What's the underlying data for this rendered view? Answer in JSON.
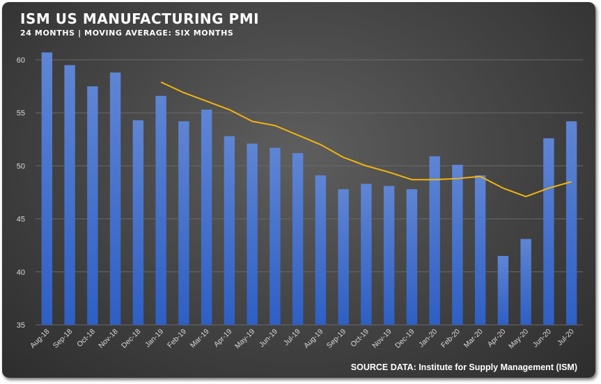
{
  "chart_data": {
    "type": "bar",
    "title": "ISM US MANUFACTURING PMI",
    "subtitle": "24 MONTHS | MOVING AVERAGE: SIX MONTHS",
    "source": "SOURCE DATA: Institute for Supply Management (ISM)",
    "categories": [
      "Aug-18",
      "Sep-18",
      "Oct-18",
      "Nov-18",
      "Dec-18",
      "Jan-19",
      "Feb-19",
      "Mar-19",
      "Apr-19",
      "May-19",
      "Jun-19",
      "Jul-19",
      "Aug-19",
      "Sep-19",
      "Oct-19",
      "Nov-19",
      "Dec-19",
      "Jan-20",
      "Feb-20",
      "Mar-20",
      "Apr-20",
      "May-20",
      "Jun-20",
      "Jul-20"
    ],
    "series": [
      {
        "type": "bar",
        "values": [
          60.7,
          59.5,
          57.5,
          58.8,
          54.3,
          56.6,
          54.2,
          55.3,
          52.8,
          52.1,
          51.7,
          51.2,
          49.1,
          47.8,
          48.3,
          48.1,
          47.8,
          50.9,
          50.1,
          49.1,
          41.5,
          43.1,
          52.6,
          54.2
        ]
      },
      {
        "type": "line",
        "values": [
          null,
          null,
          null,
          null,
          null,
          57.9,
          56.9,
          56.1,
          55.3,
          54.2,
          53.8,
          52.9,
          52.0,
          50.8,
          50.0,
          49.4,
          48.7,
          48.7,
          48.8,
          49.0,
          47.9,
          47.1,
          47.9,
          48.5
        ]
      }
    ],
    "ylim": [
      35,
      60
    ],
    "yticks": [
      35,
      40,
      45,
      50,
      55,
      60
    ],
    "grid": true,
    "colors": {
      "bar_top": "#5f85d4",
      "bar_bottom": "#2e5fc4",
      "line": "#f2b50d",
      "grid": "#6a6a6a"
    }
  }
}
